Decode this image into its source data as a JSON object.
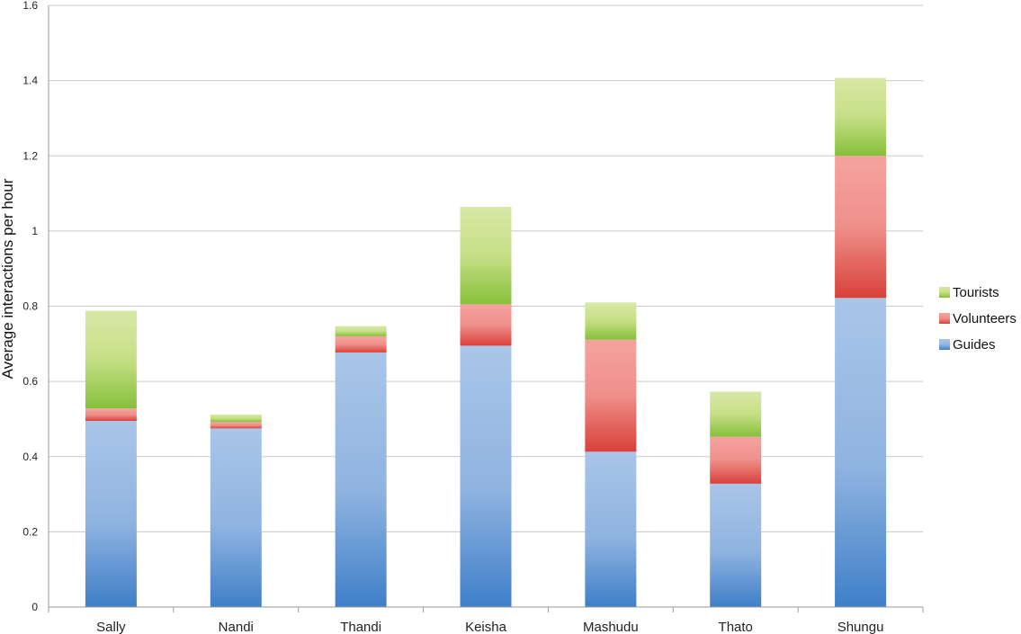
{
  "chart_data": {
    "type": "bar",
    "stacked": true,
    "title": "",
    "xlabel": "",
    "ylabel": "Average interactions per hour",
    "ylim": [
      0,
      1.6
    ],
    "yticks": [
      "0",
      "0.2",
      "0.4",
      "0.6",
      "0.8",
      "1",
      "1.2",
      "1.4",
      "1.6"
    ],
    "grid": true,
    "legend_position": "right",
    "categories": [
      "Sally",
      "Nandi",
      "Thandi",
      "Keisha",
      "Mashudu",
      "Thato",
      "Shungu"
    ],
    "series": [
      {
        "name": "Guides",
        "color": "#5b8fd0",
        "values": [
          0.495,
          0.475,
          0.677,
          0.695,
          0.413,
          0.328,
          0.822
        ]
      },
      {
        "name": "Volunteers",
        "color": "#e0524a",
        "values": [
          0.033,
          0.017,
          0.043,
          0.11,
          0.298,
          0.125,
          0.378
        ]
      },
      {
        "name": "Tourists",
        "color": "#9ccb4e",
        "values": [
          0.26,
          0.02,
          0.027,
          0.259,
          0.099,
          0.12,
          0.207
        ]
      }
    ],
    "legend_order": [
      "Tourists",
      "Volunteers",
      "Guides"
    ]
  }
}
